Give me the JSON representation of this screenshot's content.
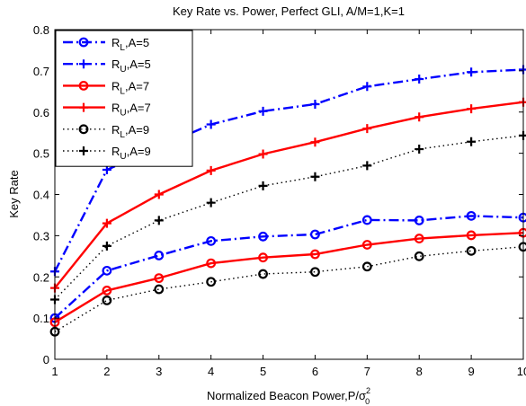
{
  "chart_data": {
    "type": "line",
    "title": "Key Rate vs. Power, Perfect GLI, A/M=1,K=1",
    "xlabel": "Normalized Beacon Power,P/σ",
    "xlabel_sup": "2",
    "xlabel_sub": "0",
    "ylabel": "Key Rate",
    "x": [
      1,
      2,
      3,
      4,
      5,
      6,
      7,
      8,
      9,
      10
    ],
    "xlim": [
      1,
      10
    ],
    "ylim": [
      0,
      0.8
    ],
    "xticks": [
      "1",
      "2",
      "3",
      "4",
      "5",
      "6",
      "7",
      "8",
      "9",
      "10"
    ],
    "yticks": [
      "0",
      "0.1",
      "0.2",
      "0.3",
      "0.4",
      "0.5",
      "0.6",
      "0.7",
      "0.8"
    ],
    "grid": false,
    "legend_position": "top-left",
    "series": [
      {
        "name": "R_L,A=5",
        "legend_main": "R",
        "legend_sub": "L",
        "legend_tail": ",A=5",
        "color": "#0000ff",
        "line": "dashdot",
        "marker": "circle",
        "values": [
          0.1,
          0.215,
          0.252,
          0.287,
          0.298,
          0.303,
          0.338,
          0.337,
          0.348,
          0.344
        ]
      },
      {
        "name": "R_U,A=5",
        "legend_main": "R",
        "legend_sub": "U",
        "legend_tail": ",A=5",
        "color": "#0000ff",
        "line": "dashdot",
        "marker": "plus",
        "values": [
          0.213,
          0.46,
          0.515,
          0.57,
          0.602,
          0.619,
          0.662,
          0.68,
          0.697,
          0.703
        ]
      },
      {
        "name": "R_L,A=7",
        "legend_main": "R",
        "legend_sub": "L",
        "legend_tail": ",A=7",
        "color": "#ff0000",
        "line": "solid",
        "marker": "circle",
        "values": [
          0.09,
          0.167,
          0.197,
          0.233,
          0.247,
          0.255,
          0.278,
          0.293,
          0.301,
          0.307
        ]
      },
      {
        "name": "R_U,A=7",
        "legend_main": "R",
        "legend_sub": "U",
        "legend_tail": ",A=7",
        "color": "#ff0000",
        "line": "solid",
        "marker": "plus",
        "values": [
          0.173,
          0.33,
          0.4,
          0.458,
          0.498,
          0.527,
          0.56,
          0.588,
          0.608,
          0.624
        ]
      },
      {
        "name": "R_L,A=9",
        "legend_main": "R",
        "legend_sub": "L",
        "legend_tail": ",A=9",
        "color": "#000000",
        "line": "dotted",
        "marker": "circle",
        "values": [
          0.067,
          0.143,
          0.17,
          0.188,
          0.207,
          0.212,
          0.225,
          0.25,
          0.263,
          0.273
        ]
      },
      {
        "name": "R_U,A=9",
        "legend_main": "R",
        "legend_sub": "U",
        "legend_tail": ",A=9",
        "color": "#000000",
        "line": "dotted",
        "marker": "plus",
        "values": [
          0.145,
          0.275,
          0.337,
          0.38,
          0.421,
          0.443,
          0.47,
          0.51,
          0.528,
          0.543
        ]
      }
    ]
  }
}
